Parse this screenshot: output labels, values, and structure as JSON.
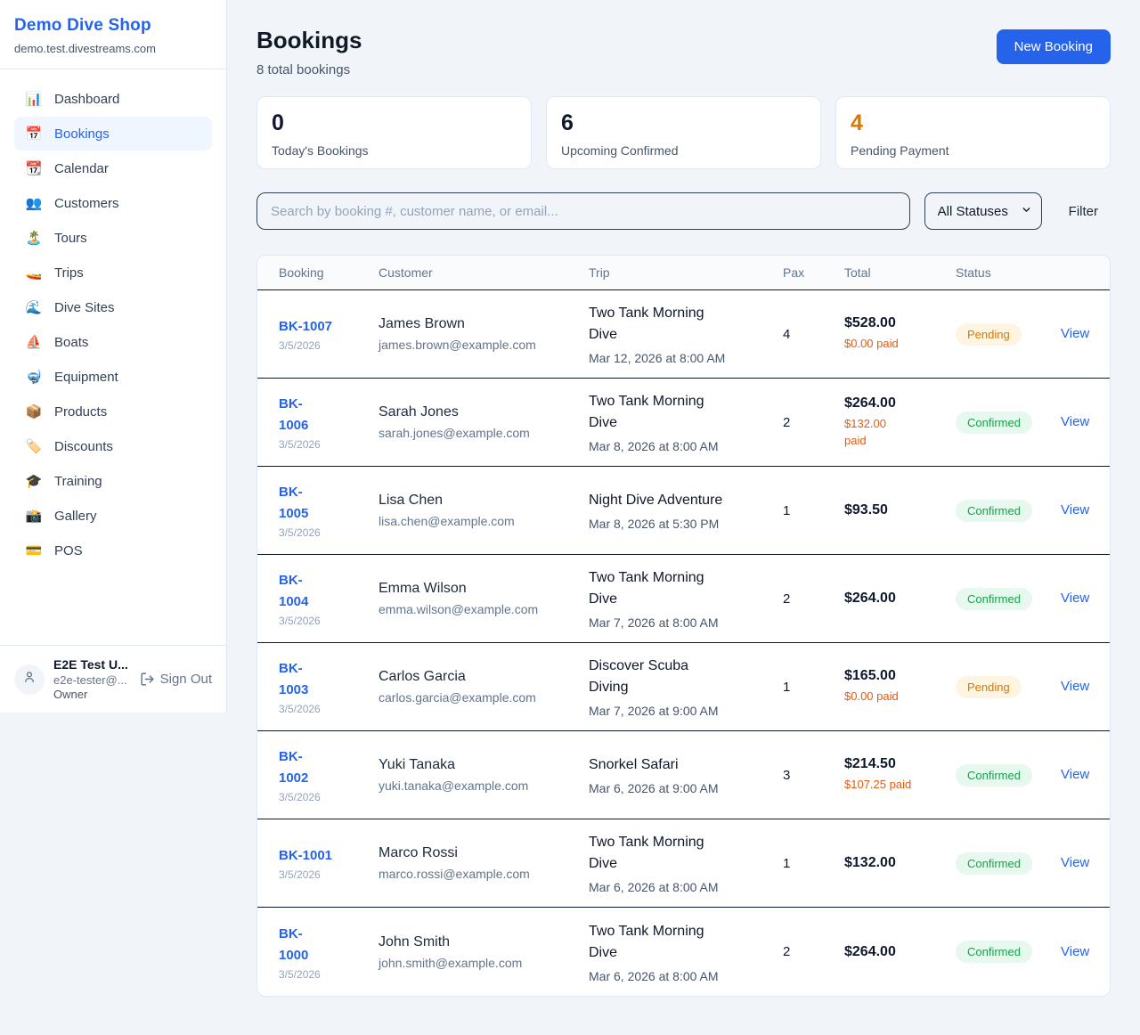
{
  "colors": {
    "accent": "#2563eb",
    "ink": "#0f172a",
    "border": "#e2e8f0",
    "row-border": "#0f172a",
    "page-bg": "#f1f5f9",
    "orange": "#d97706",
    "paid-orange": "#ea580c",
    "pending-bg": "#fdf5e0",
    "green": "#16a34a",
    "green-bg": "#e7f8ee"
  },
  "sidebar": {
    "brand": {
      "name": "Demo Dive Shop",
      "domain": "demo.test.divestreams.com"
    },
    "nav": [
      {
        "icon": "📊",
        "label": "Dashboard",
        "active": false
      },
      {
        "icon": "📅",
        "label": "Bookings",
        "active": true
      },
      {
        "icon": "📆",
        "label": "Calendar",
        "active": false
      },
      {
        "icon": "👥",
        "label": "Customers",
        "active": false
      },
      {
        "icon": "🏝️",
        "label": "Tours",
        "active": false
      },
      {
        "icon": "🚤",
        "label": "Trips",
        "active": false
      },
      {
        "icon": "🌊",
        "label": "Dive Sites",
        "active": false
      },
      {
        "icon": "⛵",
        "label": "Boats",
        "active": false
      },
      {
        "icon": "🤿",
        "label": "Equipment",
        "active": false
      },
      {
        "icon": "📦",
        "label": "Products",
        "active": false
      },
      {
        "icon": "🏷️",
        "label": "Discounts",
        "active": false
      },
      {
        "icon": "🎓",
        "label": "Training",
        "active": false
      },
      {
        "icon": "📸",
        "label": "Gallery",
        "active": false
      },
      {
        "icon": "💳",
        "label": "POS",
        "active": false
      }
    ],
    "user": {
      "name": "E2E Test U...",
      "email": "e2e-tester@...",
      "role": "Owner",
      "sign_out_label": "Sign Out"
    }
  },
  "header": {
    "title": "Bookings",
    "subtitle": "8 total bookings",
    "new_booking_label": "New Booking"
  },
  "stats": [
    {
      "value": "0",
      "label": "Today's Bookings",
      "color": "#0f172a"
    },
    {
      "value": "6",
      "label": "Upcoming Confirmed",
      "color": "#0f172a"
    },
    {
      "value": "4",
      "label": "Pending Payment",
      "color": "#d97706"
    }
  ],
  "filters": {
    "search_placeholder": "Search by booking #, customer name, or email...",
    "status_value": "All Statuses",
    "filter_label": "Filter"
  },
  "table": {
    "columns": [
      "Booking",
      "Customer",
      "Trip",
      "Pax",
      "Total",
      "Status",
      ""
    ],
    "view_label": "View",
    "rows": [
      {
        "id": "BK-1007",
        "date": "3/5/2026",
        "customer": "James Brown",
        "email": "james.brown@example.com",
        "trip": "Two Tank Morning\nDive",
        "trip_time": "Mar 12, 2026 at 8:00 AM",
        "pax": "4",
        "total": "$528.00",
        "paid": "$0.00 paid",
        "status": "Pending"
      },
      {
        "id": "BK-\n1006",
        "date": "3/5/2026",
        "customer": "Sarah Jones",
        "email": "sarah.jones@example.com",
        "trip": "Two Tank Morning\nDive",
        "trip_time": "Mar 8, 2026 at 8:00 AM",
        "pax": "2",
        "total": "$264.00",
        "paid": "$132.00\npaid",
        "status": "Confirmed"
      },
      {
        "id": "BK-\n1005",
        "date": "3/5/2026",
        "customer": "Lisa Chen",
        "email": "lisa.chen@example.com",
        "trip": "Night Dive Adventure",
        "trip_time": "Mar 8, 2026 at 5:30 PM",
        "pax": "1",
        "total": "$93.50",
        "paid": "",
        "status": "Confirmed"
      },
      {
        "id": "BK-\n1004",
        "date": "3/5/2026",
        "customer": "Emma Wilson",
        "email": "emma.wilson@example.com",
        "trip": "Two Tank Morning\nDive",
        "trip_time": "Mar 7, 2026 at 8:00 AM",
        "pax": "2",
        "total": "$264.00",
        "paid": "",
        "status": "Confirmed"
      },
      {
        "id": "BK-\n1003",
        "date": "3/5/2026",
        "customer": "Carlos Garcia",
        "email": "carlos.garcia@example.com",
        "trip": "Discover Scuba\nDiving",
        "trip_time": "Mar 7, 2026 at 9:00 AM",
        "pax": "1",
        "total": "$165.00",
        "paid": "$0.00 paid",
        "status": "Pending"
      },
      {
        "id": "BK-\n1002",
        "date": "3/5/2026",
        "customer": "Yuki Tanaka",
        "email": "yuki.tanaka@example.com",
        "trip": "Snorkel Safari",
        "trip_time": "Mar 6, 2026 at 9:00 AM",
        "pax": "3",
        "total": "$214.50",
        "paid": "$107.25 paid",
        "status": "Confirmed"
      },
      {
        "id": "BK-1001",
        "date": "3/5/2026",
        "customer": "Marco Rossi",
        "email": "marco.rossi@example.com",
        "trip": "Two Tank Morning\nDive",
        "trip_time": "Mar 6, 2026 at 8:00 AM",
        "pax": "1",
        "total": "$132.00",
        "paid": "",
        "status": "Confirmed"
      },
      {
        "id": "BK-\n1000",
        "date": "3/5/2026",
        "customer": "John Smith",
        "email": "john.smith@example.com",
        "trip": "Two Tank Morning\nDive",
        "trip_time": "Mar 6, 2026 at 8:00 AM",
        "pax": "2",
        "total": "$264.00",
        "paid": "",
        "status": "Confirmed"
      }
    ]
  }
}
